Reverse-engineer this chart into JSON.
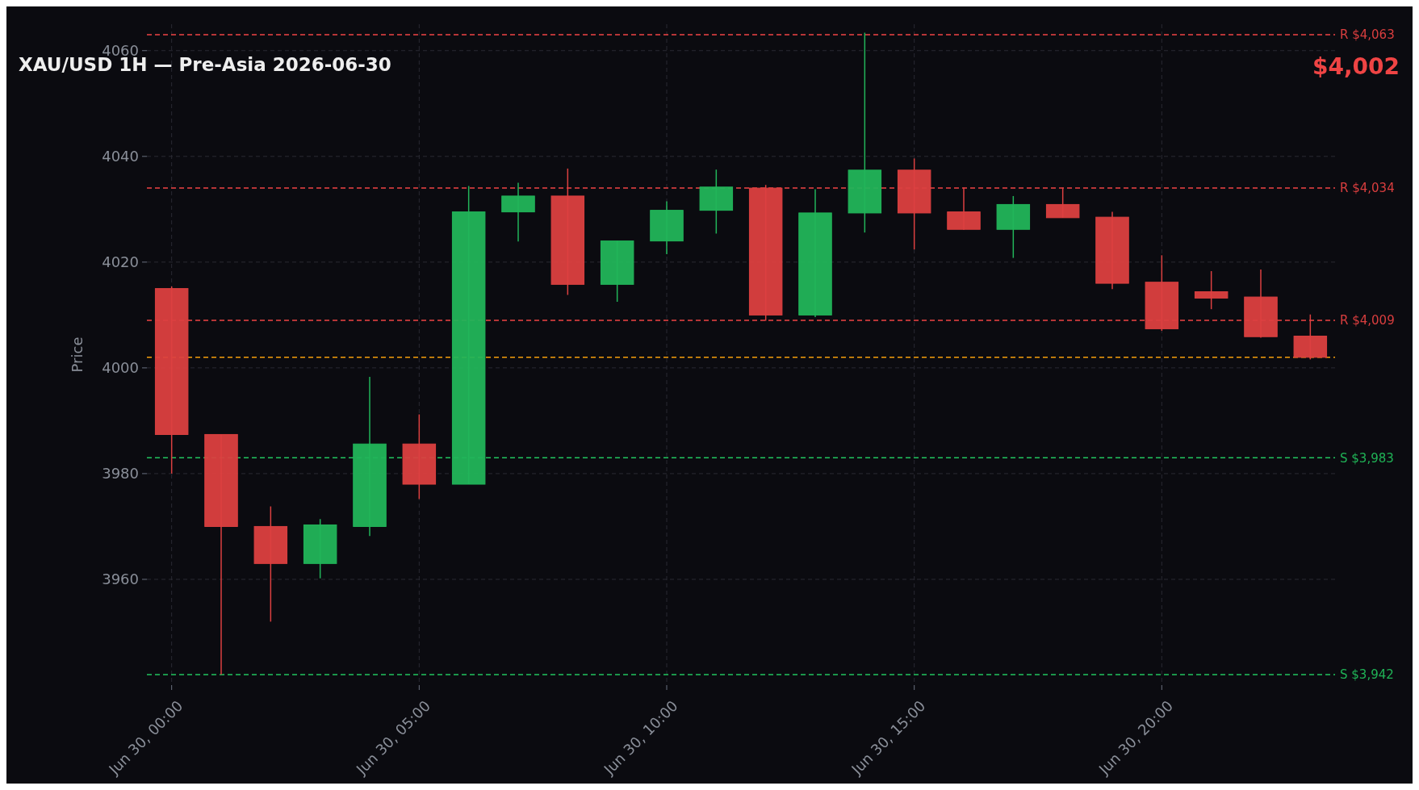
{
  "chart_data": {
    "type": "candlestick",
    "title": "XAU/USD 1H — Pre-Asia 2026-06-30",
    "ylabel": "Price",
    "x": [
      "2026-06-30T00:00",
      "2026-06-30T01:00",
      "2026-06-30T02:00",
      "2026-06-30T03:00",
      "2026-06-30T04:00",
      "2026-06-30T05:00",
      "2026-06-30T06:00",
      "2026-06-30T07:00",
      "2026-06-30T08:00",
      "2026-06-30T09:00",
      "2026-06-30T10:00",
      "2026-06-30T11:00",
      "2026-06-30T12:00",
      "2026-06-30T13:00",
      "2026-06-30T14:00",
      "2026-06-30T15:00",
      "2026-06-30T16:00",
      "2026-06-30T17:00",
      "2026-06-30T18:00",
      "2026-06-30T19:00",
      "2026-06-30T20:00",
      "2026-06-30T21:00",
      "2026-06-30T22:00",
      "2026-06-30T23:00"
    ],
    "ohlc": [
      [
        4015,
        4015.4,
        3980,
        3987.4
      ],
      [
        3987.4,
        3987.4,
        3942,
        3970
      ],
      [
        3970,
        3973.8,
        3952,
        3963
      ],
      [
        3963,
        3971.4,
        3960.2,
        3970.3
      ],
      [
        3970,
        3998.3,
        3968.2,
        3985.6
      ],
      [
        3985.6,
        3991.2,
        3975.2,
        3978
      ],
      [
        3978,
        4034.4,
        3978,
        4029.5
      ],
      [
        4029.5,
        4035,
        4023.9,
        4032.5
      ],
      [
        4032.5,
        4037.7,
        4013.8,
        4015.8
      ],
      [
        4015.8,
        4024,
        4012.5,
        4024
      ],
      [
        4024,
        4031.5,
        4021.5,
        4029.8
      ],
      [
        4029.8,
        4037.5,
        4025.4,
        4034.2
      ],
      [
        4034,
        4034.6,
        4008.9,
        4010
      ],
      [
        4010,
        4033.8,
        4009.6,
        4029.3
      ],
      [
        4029.3,
        4063.4,
        4025.6,
        4037.4
      ],
      [
        4037.4,
        4039.6,
        4022.4,
        4029.3
      ],
      [
        4029.5,
        4034.1,
        4026.1,
        4026.2
      ],
      [
        4026.2,
        4032.5,
        4020.8,
        4030.9
      ],
      [
        4030.9,
        4034.1,
        4028.4,
        4028.4
      ],
      [
        4028.5,
        4029.5,
        4014.9,
        4016
      ],
      [
        4016.2,
        4021.3,
        4007,
        4007.4
      ],
      [
        4014.4,
        4018.3,
        4011.1,
        4013.2
      ],
      [
        4013.4,
        4018.6,
        4005.7,
        4005.9
      ],
      [
        4006,
        4010.1,
        4001.6,
        4002
      ]
    ],
    "colors": [
      "#dc4040",
      "#dc4040",
      "#dc4040",
      "#22b55a",
      "#22b55a",
      "#dc4040",
      "#22b55a",
      "#22b55a",
      "#dc4040",
      "#22b55a",
      "#22b55a",
      "#22b55a",
      "#dc4040",
      "#22b55a",
      "#22b55a",
      "#dc4040",
      "#dc4040",
      "#22b55a",
      "#dc4040",
      "#dc4040",
      "#dc4040",
      "#dc4040",
      "#dc4040",
      "#dc4040"
    ],
    "xlim": [
      "2026-06-29T23:30",
      "2026-06-30T23:30"
    ],
    "xticks": [
      {
        "value": "2026-06-30T00:00",
        "label": "Jun 30, 00:00"
      },
      {
        "value": "2026-06-30T05:00",
        "label": "Jun 30, 05:00"
      },
      {
        "value": "2026-06-30T10:00",
        "label": "Jun 30, 10:00"
      },
      {
        "value": "2026-06-30T15:00",
        "label": "Jun 30, 15:00"
      },
      {
        "value": "2026-06-30T20:00",
        "label": "Jun 30, 20:00"
      }
    ],
    "ylim": [
      3940,
      4065
    ],
    "yticks": [
      3960,
      3980,
      4000,
      4020,
      4040,
      4060
    ],
    "grid": true,
    "ref_lines": [
      {
        "axis": "y",
        "value": 4063,
        "label": "R $4,063",
        "color": "#ef4444",
        "line_style": "dashed"
      },
      {
        "axis": "y",
        "value": 4034,
        "label": "R $4,034",
        "color": "#ef4444",
        "line_style": "dashed"
      },
      {
        "axis": "y",
        "value": 4009,
        "label": "R $4,009",
        "color": "#ef4444",
        "line_style": "dashed"
      },
      {
        "axis": "y",
        "value": 3983,
        "label": "S $3,983",
        "color": "#22c55e",
        "line_style": "dashed"
      },
      {
        "axis": "y",
        "value": 3942,
        "label": "S $3,942",
        "color": "#22c55e",
        "line_style": "dashed"
      },
      {
        "axis": "y",
        "value": 4002,
        "color": "#f59e0b",
        "line_style": "dashed"
      }
    ],
    "annotations": [
      "$4,002"
    ]
  }
}
